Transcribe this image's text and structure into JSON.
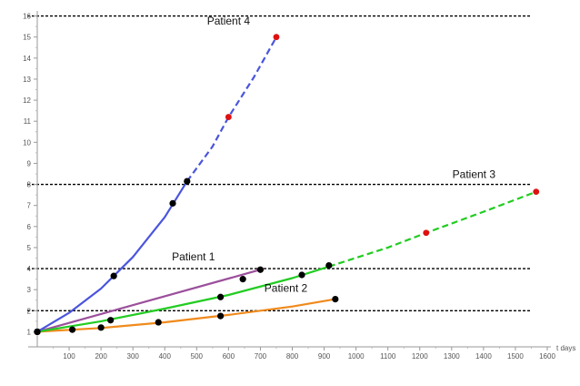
{
  "chart_data": {
    "type": "line",
    "title": "",
    "xlabel": "t days",
    "ylabel": "",
    "xlim": [
      0,
      1600
    ],
    "ylim": [
      0.5,
      16.5
    ],
    "x_ticks": [
      "100",
      "200",
      "300",
      "400",
      "500",
      "600",
      "700",
      "800",
      "900",
      "1000",
      "1100",
      "1200",
      "1300",
      "1400",
      "1500",
      "1600"
    ],
    "y_ticks": [
      "1",
      "2",
      "3",
      "4",
      "5",
      "6",
      "7",
      "8",
      "9",
      "10",
      "11",
      "12",
      "13",
      "14",
      "15",
      "16"
    ],
    "reference_lines_y": [
      2,
      4,
      8,
      16
    ],
    "grid": false,
    "series": [
      {
        "name": "Patient 1",
        "color": "#9b4f9b",
        "observed_points": [
          [
            0,
            1.0
          ],
          [
            645,
            3.5
          ],
          [
            700,
            3.95
          ]
        ],
        "fit": [
          [
            0,
            1.0
          ],
          [
            700,
            3.95
          ]
        ]
      },
      {
        "name": "Patient 2",
        "color": "#f08a1c",
        "observed_points": [
          [
            0,
            1.0
          ],
          [
            110,
            1.1
          ],
          [
            200,
            1.2
          ],
          [
            380,
            1.45
          ],
          [
            575,
            1.75
          ],
          [
            935,
            2.55
          ]
        ],
        "fit": [
          [
            0,
            1.0
          ],
          [
            200,
            1.18
          ],
          [
            400,
            1.45
          ],
          [
            600,
            1.8
          ],
          [
            800,
            2.2
          ],
          [
            935,
            2.55
          ]
        ]
      },
      {
        "name": "Patient 3",
        "color": "#22cc22",
        "observed_points": [
          [
            0,
            1.0
          ],
          [
            230,
            1.55
          ],
          [
            575,
            2.65
          ],
          [
            830,
            3.7
          ],
          [
            915,
            4.15
          ]
        ],
        "fit": [
          [
            0,
            1.0
          ],
          [
            200,
            1.5
          ],
          [
            400,
            2.1
          ],
          [
            600,
            2.75
          ],
          [
            800,
            3.55
          ],
          [
            915,
            4.1
          ]
        ],
        "projection": [
          [
            915,
            4.1
          ],
          [
            1100,
            5.0
          ],
          [
            1220,
            5.7
          ],
          [
            1400,
            6.7
          ],
          [
            1565,
            7.65
          ]
        ],
        "projected_points": [
          [
            1220,
            5.7
          ],
          [
            1565,
            7.65
          ]
        ]
      },
      {
        "name": "Patient 4",
        "color": "#4a55dd",
        "observed_points": [
          [
            0,
            1.0
          ],
          [
            240,
            3.65
          ],
          [
            425,
            7.1
          ],
          [
            470,
            8.15
          ]
        ],
        "fit": [
          [
            0,
            1.0
          ],
          [
            100,
            1.9
          ],
          [
            200,
            3.05
          ],
          [
            300,
            4.55
          ],
          [
            400,
            6.45
          ],
          [
            470,
            8.15
          ]
        ],
        "projection": [
          [
            470,
            8.15
          ],
          [
            550,
            9.8
          ],
          [
            600,
            11.2
          ],
          [
            680,
            13.1
          ],
          [
            750,
            15.0
          ]
        ],
        "projected_points": [
          [
            600,
            11.2
          ],
          [
            750,
            15.0
          ]
        ]
      }
    ],
    "annotations": [
      {
        "text": "Patient 4",
        "x": 600,
        "y": 15.6
      },
      {
        "text": "Patient 3",
        "x": 1370,
        "y": 8.3
      },
      {
        "text": "Patient 1",
        "x": 490,
        "y": 4.4
      },
      {
        "text": "Patient 2",
        "x": 780,
        "y": 2.9
      }
    ],
    "point_color_observed": "#000000",
    "point_color_projected": "#e01010"
  }
}
